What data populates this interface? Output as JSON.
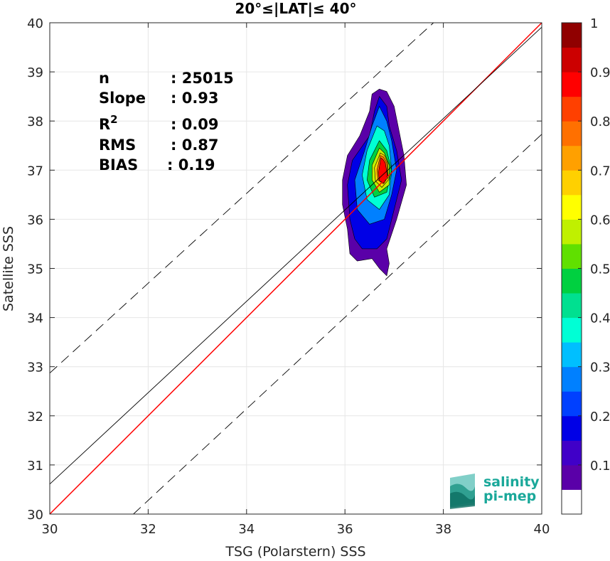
{
  "chart_data": {
    "type": "heatmap",
    "title": "20°≤|LAT|≤ 40°",
    "xlabel": "TSG (Polarstern) SSS",
    "ylabel": "Satellite SSS",
    "xlim": [
      30,
      40
    ],
    "ylim": [
      30,
      40
    ],
    "x_ticks": [
      "30",
      "32",
      "34",
      "36",
      "38",
      "40"
    ],
    "y_ticks": [
      "30",
      "31",
      "32",
      "33",
      "34",
      "35",
      "36",
      "37",
      "38",
      "39",
      "40"
    ],
    "grid": true,
    "stats": [
      {
        "label": "n",
        "value": ": 25015"
      },
      {
        "label": "Slope",
        "value": ": 0.93"
      },
      {
        "label": "R",
        "sup": "2",
        "value": ": 0.09"
      },
      {
        "label": "RMS",
        "value": ": 0.87"
      },
      {
        "label": "BIAS",
        "value": ": 0.19"
      }
    ],
    "lines": [
      {
        "name": "identity",
        "color": "#ff0000",
        "points": [
          [
            30,
            30
          ],
          [
            40,
            40
          ]
        ]
      },
      {
        "name": "regression",
        "color": "#000000",
        "points": [
          [
            30,
            30.61
          ],
          [
            40,
            39.91
          ]
        ]
      },
      {
        "name": "upper-bound",
        "color": "#000000",
        "dashed": true,
        "points": [
          [
            30,
            32.87
          ],
          [
            37.8,
            40
          ]
        ]
      },
      {
        "name": "lower-bound",
        "color": "#000000",
        "dashed": true,
        "points": [
          [
            31.7,
            30
          ],
          [
            40,
            37.73
          ]
        ]
      }
    ],
    "density_contours": [
      {
        "level": 0.05,
        "points": [
          [
            36.7,
            38.65
          ],
          [
            36.55,
            38.55
          ],
          [
            36.5,
            38.2
          ],
          [
            36.3,
            37.7
          ],
          [
            36.05,
            37.3
          ],
          [
            35.95,
            36.8
          ],
          [
            35.95,
            36.3
          ],
          [
            36.05,
            35.8
          ],
          [
            36.1,
            35.3
          ],
          [
            36.25,
            35.15
          ],
          [
            36.55,
            35.2
          ],
          [
            36.7,
            35.0
          ],
          [
            36.85,
            34.85
          ],
          [
            36.9,
            35.1
          ],
          [
            36.85,
            35.4
          ],
          [
            37.05,
            36.0
          ],
          [
            37.25,
            36.7
          ],
          [
            37.2,
            37.3
          ],
          [
            37.1,
            37.8
          ],
          [
            37.0,
            38.3
          ],
          [
            36.85,
            38.6
          ]
        ]
      },
      {
        "level": 0.15,
        "points": [
          [
            36.7,
            38.5
          ],
          [
            36.6,
            38.2
          ],
          [
            36.5,
            37.7
          ],
          [
            36.15,
            37.2
          ],
          [
            36.05,
            36.7
          ],
          [
            36.1,
            36.0
          ],
          [
            36.2,
            35.6
          ],
          [
            36.35,
            35.4
          ],
          [
            36.65,
            35.4
          ],
          [
            36.85,
            35.6
          ],
          [
            37.0,
            36.2
          ],
          [
            37.15,
            36.8
          ],
          [
            37.05,
            37.4
          ],
          [
            36.9,
            37.9
          ],
          [
            36.85,
            38.3
          ]
        ]
      },
      {
        "level": 0.25,
        "points": [
          [
            36.7,
            38.3
          ],
          [
            36.55,
            37.9
          ],
          [
            36.4,
            37.4
          ],
          [
            36.2,
            36.8
          ],
          [
            36.25,
            36.2
          ],
          [
            36.5,
            35.9
          ],
          [
            36.8,
            36.0
          ],
          [
            36.95,
            36.5
          ],
          [
            37.05,
            37.0
          ],
          [
            36.95,
            37.6
          ],
          [
            36.85,
            38.0
          ]
        ]
      },
      {
        "level": 0.35,
        "points": [
          [
            36.65,
            37.9
          ],
          [
            36.45,
            37.4
          ],
          [
            36.35,
            36.9
          ],
          [
            36.45,
            36.4
          ],
          [
            36.7,
            36.2
          ],
          [
            36.9,
            36.5
          ],
          [
            36.95,
            37.0
          ],
          [
            36.9,
            37.5
          ],
          [
            36.8,
            37.8
          ]
        ]
      },
      {
        "level": 0.45,
        "points": [
          [
            36.7,
            37.6
          ],
          [
            36.5,
            37.2
          ],
          [
            36.45,
            36.8
          ],
          [
            36.6,
            36.45
          ],
          [
            36.85,
            36.55
          ],
          [
            36.95,
            37.0
          ],
          [
            36.85,
            37.4
          ]
        ]
      },
      {
        "level": 0.55,
        "points": [
          [
            36.7,
            37.45
          ],
          [
            36.55,
            37.1
          ],
          [
            36.55,
            36.8
          ],
          [
            36.7,
            36.55
          ],
          [
            36.9,
            36.7
          ],
          [
            36.9,
            37.1
          ],
          [
            36.8,
            37.35
          ]
        ]
      },
      {
        "level": 0.65,
        "points": [
          [
            36.72,
            37.35
          ],
          [
            36.6,
            37.05
          ],
          [
            36.62,
            36.78
          ],
          [
            36.75,
            36.65
          ],
          [
            36.88,
            36.8
          ],
          [
            36.87,
            37.15
          ],
          [
            36.8,
            37.3
          ]
        ]
      },
      {
        "level": 0.75,
        "points": [
          [
            36.72,
            37.3
          ],
          [
            36.65,
            37.0
          ],
          [
            36.67,
            36.8
          ],
          [
            36.78,
            36.72
          ],
          [
            36.87,
            36.85
          ],
          [
            36.85,
            37.15
          ],
          [
            36.78,
            37.27
          ]
        ]
      },
      {
        "level": 0.85,
        "points": [
          [
            36.73,
            37.25
          ],
          [
            36.68,
            36.95
          ],
          [
            36.7,
            36.78
          ],
          [
            36.8,
            36.74
          ],
          [
            36.86,
            36.9
          ],
          [
            36.82,
            37.15
          ],
          [
            36.77,
            37.22
          ]
        ]
      }
    ],
    "colorbar": {
      "ticks": [
        "0.1",
        "0.2",
        "0.3",
        "0.4",
        "0.5",
        "0.6",
        "0.7",
        "0.8",
        "0.9",
        "1"
      ],
      "colors": [
        "#ffffff",
        "#5a00a8",
        "#4000c8",
        "#0000e6",
        "#0040ff",
        "#0080ff",
        "#00bfff",
        "#00ffd5",
        "#00e090",
        "#00d040",
        "#60e000",
        "#c0f000",
        "#ffff00",
        "#ffd000",
        "#ffa000",
        "#ff7000",
        "#ff4000",
        "#ff0000",
        "#cc0000",
        "#900000"
      ]
    },
    "logo_lines": [
      "salinity",
      "pi-mep"
    ]
  }
}
